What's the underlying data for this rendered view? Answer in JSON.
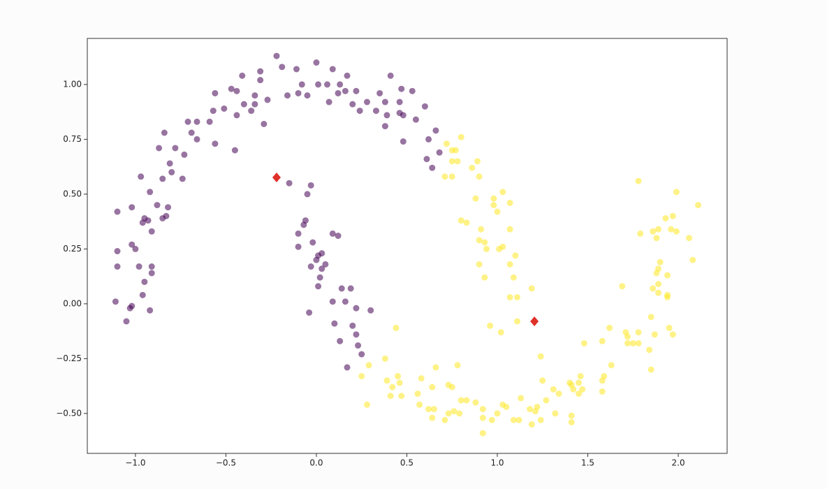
{
  "chart_data": {
    "type": "scatter",
    "xlim": [
      -1.266,
      2.27
    ],
    "ylim": [
      -0.682,
      1.21
    ],
    "xticks": [
      {
        "value": -1.0,
        "label": "−1.0"
      },
      {
        "value": -0.5,
        "label": "−0.5"
      },
      {
        "value": 0.0,
        "label": "0.0"
      },
      {
        "value": 0.5,
        "label": "0.5"
      },
      {
        "value": 1.0,
        "label": "1.0"
      },
      {
        "value": 1.5,
        "label": "1.5"
      },
      {
        "value": 2.0,
        "label": "2.0"
      }
    ],
    "yticks": [
      {
        "value": -0.5,
        "label": "−0.50"
      },
      {
        "value": -0.25,
        "label": "−0.25"
      },
      {
        "value": 0.0,
        "label": "0.00"
      },
      {
        "value": 0.25,
        "label": "0.25"
      },
      {
        "value": 0.5,
        "label": "0.50"
      },
      {
        "value": 0.75,
        "label": "0.75"
      },
      {
        "value": 1.0,
        "label": "1.00"
      }
    ],
    "grid": false,
    "series": [
      {
        "color": "#440154",
        "alpha": 0.55,
        "marker": "circle",
        "x": [
          -0.22,
          -0.19,
          0.0,
          0.09,
          -0.11,
          -0.31,
          -0.41,
          0.17,
          0.41,
          -0.08,
          0.01,
          0.06,
          0.13,
          -0.31,
          -0.47,
          -0.44,
          -0.56,
          -0.34,
          -0.27,
          -0.16,
          -0.1,
          -0.05,
          0.07,
          0.12,
          0.16,
          0.22,
          0.28,
          0.35,
          0.47,
          0.53,
          0.6,
          0.46,
          0.38,
          0.33,
          0.24,
          0.2,
          0.39,
          0.38,
          0.46,
          0.48,
          0.48,
          0.55,
          0.62,
          0.66,
          0.68,
          0.61,
          0.64,
          -0.4,
          -0.36,
          -0.44,
          -0.51,
          -0.57,
          -0.59,
          -0.29,
          -0.34,
          -0.66,
          -0.71,
          -0.69,
          -0.66,
          -0.56,
          -0.45,
          -0.73,
          -0.78,
          -0.87,
          -0.84,
          -0.81,
          -0.8,
          -0.85,
          -0.74,
          -0.97,
          -0.92,
          -1.02,
          -1.1,
          -0.88,
          -0.82,
          -0.83,
          -0.85,
          -0.95,
          -0.93,
          -0.96,
          -0.91,
          -1.1,
          -1.02,
          -1.0,
          -1.1,
          -0.98,
          -0.91,
          -0.91,
          -0.95,
          -1.11,
          -0.96,
          -1.02,
          -1.03,
          -0.92,
          -1.05,
          -0.15,
          -0.03,
          -0.05,
          -0.06,
          -0.07,
          -0.1,
          -0.02,
          0.09,
          0.12,
          -0.1,
          0.03,
          0.01,
          0.0,
          0.05,
          -0.03,
          0.03,
          0.02,
          0.01,
          0.14,
          0.19,
          0.09,
          0.16,
          0.22,
          0.3,
          -0.04,
          0.1,
          0.2,
          0.22,
          0.13,
          0.23,
          0.25,
          0.17
        ],
        "y": [
          1.13,
          1.08,
          1.1,
          1.07,
          1.07,
          1.06,
          1.04,
          1.04,
          1.04,
          1.0,
          1.0,
          1.0,
          1.0,
          1.02,
          0.98,
          0.97,
          0.96,
          0.95,
          0.93,
          0.95,
          0.96,
          0.95,
          0.92,
          0.96,
          0.97,
          0.97,
          0.92,
          0.96,
          0.98,
          0.97,
          0.9,
          0.92,
          0.92,
          0.88,
          0.88,
          0.91,
          0.86,
          0.81,
          0.87,
          0.86,
          0.74,
          0.84,
          0.75,
          0.79,
          0.69,
          0.66,
          0.62,
          0.91,
          0.88,
          0.86,
          0.89,
          0.88,
          0.83,
          0.82,
          0.91,
          0.83,
          0.83,
          0.78,
          0.75,
          0.73,
          0.7,
          0.68,
          0.71,
          0.71,
          0.78,
          0.64,
          0.6,
          0.57,
          0.57,
          0.58,
          0.51,
          0.44,
          0.42,
          0.45,
          0.44,
          0.4,
          0.39,
          0.39,
          0.38,
          0.37,
          0.33,
          0.24,
          0.27,
          0.25,
          0.17,
          0.17,
          0.17,
          0.14,
          0.1,
          0.01,
          0.04,
          -0.01,
          -0.02,
          -0.03,
          -0.08,
          0.55,
          0.54,
          0.5,
          0.38,
          0.36,
          0.32,
          0.28,
          0.32,
          0.31,
          0.26,
          0.23,
          0.22,
          0.2,
          0.18,
          0.17,
          0.16,
          0.12,
          0.08,
          0.07,
          0.07,
          0.01,
          0.01,
          -0.02,
          -0.03,
          -0.04,
          -0.09,
          -0.1,
          -0.14,
          -0.17,
          -0.19,
          -0.23,
          -0.29
        ]
      },
      {
        "color": "#fde725",
        "alpha": 0.55,
        "marker": "circle",
        "x": [
          0.75,
          0.8,
          0.72,
          0.77,
          0.75,
          0.78,
          0.89,
          0.86,
          0.71,
          0.75,
          0.9,
          1.03,
          0.98,
          0.88,
          1.07,
          0.98,
          1.0,
          0.8,
          0.83,
          0.91,
          1.07,
          0.9,
          0.93,
          1.03,
          1.01,
          0.94,
          1.1,
          1.07,
          0.9,
          0.93,
          1.09,
          1.19,
          1.11,
          1.07,
          0.96,
          1.02,
          1.11,
          1.24,
          1.25,
          1.48,
          1.62,
          1.58,
          1.63,
          1.59,
          1.58,
          1.58,
          1.46,
          1.45,
          1.41,
          1.4,
          1.31,
          1.34,
          1.42,
          1.45,
          1.47,
          1.27,
          1.22,
          1.18,
          1.13,
          1.09,
          1.12,
          1.21,
          1.24,
          1.19,
          1.32,
          1.41,
          1.41,
          1.03,
          1.05,
          1.0,
          0.97,
          0.92,
          0.88,
          0.83,
          0.8,
          0.92,
          0.92,
          0.79,
          0.76,
          0.73,
          0.71,
          0.64,
          0.65,
          0.62,
          0.73,
          0.75,
          0.78,
          0.66,
          0.64,
          0.58,
          0.56,
          0.57,
          0.45,
          0.46,
          0.47,
          0.42,
          0.41,
          0.39,
          0.38,
          0.44,
          0.29,
          0.25,
          0.28,
          1.78,
          2.11,
          1.99,
          1.93,
          1.97,
          1.89,
          1.96,
          1.99,
          1.86,
          1.88,
          1.79,
          2.06,
          2.08,
          1.9,
          1.89,
          1.88,
          1.94,
          1.89,
          1.86,
          1.69,
          1.94,
          1.89,
          1.94,
          1.85,
          1.71,
          1.78,
          1.95,
          1.97,
          1.87,
          1.72,
          1.72,
          1.75,
          1.78,
          1.84,
          1.85
        ],
        "y": [
          0.7,
          0.76,
          0.73,
          0.7,
          0.65,
          0.65,
          0.65,
          0.62,
          0.58,
          0.58,
          0.58,
          0.51,
          0.48,
          0.48,
          0.46,
          0.45,
          0.42,
          0.38,
          0.37,
          0.34,
          0.34,
          0.29,
          0.28,
          0.26,
          0.25,
          0.25,
          0.22,
          0.18,
          0.18,
          0.12,
          0.12,
          0.07,
          0.03,
          0.03,
          -0.1,
          -0.13,
          -0.08,
          -0.24,
          -0.35,
          -0.18,
          -0.11,
          -0.17,
          -0.28,
          -0.33,
          -0.35,
          -0.4,
          -0.33,
          -0.36,
          -0.37,
          -0.36,
          -0.39,
          -0.41,
          -0.39,
          -0.41,
          -0.39,
          -0.44,
          -0.47,
          -0.48,
          -0.43,
          -0.53,
          -0.53,
          -0.49,
          -0.53,
          -0.55,
          -0.5,
          -0.51,
          -0.54,
          -0.46,
          -0.47,
          -0.5,
          -0.53,
          -0.52,
          -0.45,
          -0.44,
          -0.44,
          -0.48,
          -0.59,
          -0.5,
          -0.49,
          -0.5,
          -0.53,
          -0.52,
          -0.48,
          -0.48,
          -0.37,
          -0.38,
          -0.28,
          -0.29,
          -0.38,
          -0.34,
          -0.41,
          -0.46,
          -0.33,
          -0.36,
          -0.42,
          -0.38,
          -0.42,
          -0.35,
          -0.25,
          -0.11,
          -0.28,
          -0.33,
          -0.46,
          0.56,
          0.45,
          0.51,
          0.39,
          0.4,
          0.34,
          0.34,
          0.33,
          0.33,
          0.3,
          0.32,
          0.3,
          0.2,
          0.19,
          0.16,
          0.14,
          0.13,
          0.09,
          0.07,
          0.08,
          0.04,
          0.05,
          0.03,
          -0.06,
          -0.13,
          -0.13,
          -0.11,
          -0.14,
          -0.14,
          -0.15,
          -0.18,
          -0.18,
          -0.18,
          -0.21,
          -0.3
        ]
      },
      {
        "color": "#e0302a",
        "alpha": 1,
        "marker": "diamond",
        "x": [
          -0.22,
          1.205
        ],
        "y": [
          0.576,
          -0.08
        ]
      }
    ]
  }
}
